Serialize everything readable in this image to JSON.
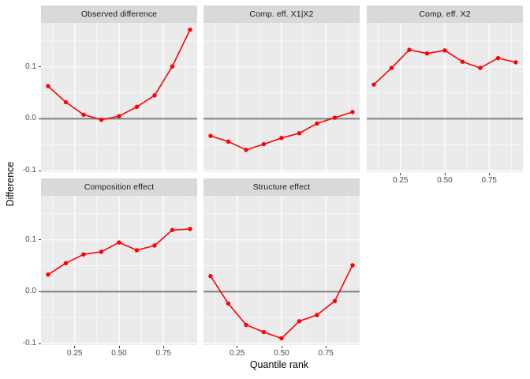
{
  "figure": {
    "xlabel": "Quantile rank",
    "ylabel": "Difference"
  },
  "style": {
    "figure_bg": "#FFFFFF",
    "panel_bg": "#EBEBEB",
    "strip_bg": "#D9D9D9",
    "strip_text_color": "#1A1A1A",
    "grid_major_color": "#FFFFFF",
    "grid_minor_color": "#FFFFFF",
    "line_color": "#FF0000",
    "point_color": "#FF0000",
    "zero_line_color": "#808080",
    "axis_text_color": "#4D4D4D"
  },
  "chart_data": {
    "type": "line",
    "facets": true,
    "grid": true,
    "xlabel": "Quantile rank",
    "ylabel": "Difference",
    "x": [
      0.1,
      0.2,
      0.3,
      0.4,
      0.5,
      0.6,
      0.7,
      0.8,
      0.9
    ],
    "series": [
      {
        "name": "Observed difference",
        "values": [
          0.063,
          0.032,
          0.008,
          -0.002,
          0.005,
          0.023,
          0.045,
          0.101,
          0.172
        ]
      },
      {
        "name": "Comp. eff. X1|X2",
        "values": [
          -0.033,
          -0.044,
          -0.06,
          -0.049,
          -0.037,
          -0.028,
          -0.009,
          0.002,
          0.013
        ]
      },
      {
        "name": "Comp. eff. X2",
        "values": [
          0.066,
          0.098,
          0.133,
          0.126,
          0.132,
          0.11,
          0.098,
          0.117,
          0.109
        ]
      },
      {
        "name": "Composition effect",
        "values": [
          0.033,
          0.055,
          0.072,
          0.077,
          0.095,
          0.08,
          0.089,
          0.119,
          0.121
        ]
      },
      {
        "name": "Structure effect",
        "values": [
          0.03,
          -0.023,
          -0.064,
          -0.078,
          -0.09,
          -0.057,
          -0.045,
          -0.018,
          0.051
        ]
      }
    ],
    "xlim": [
      0.06,
      0.94
    ],
    "ylim": [
      -0.103,
      0.185
    ],
    "x_ticks": [
      0.25,
      0.5,
      0.75
    ],
    "x_tick_labels": [
      "0.25",
      "0.50",
      "0.75"
    ],
    "y_ticks": [
      0.1,
      0.0,
      -0.1
    ],
    "y_tick_labels": [
      "0.1",
      "0.0",
      "-0.1"
    ],
    "x_minor_ticks": [
      0.125,
      0.375,
      0.625,
      0.875
    ],
    "y_minor_ticks": [
      0.15,
      0.05,
      -0.05
    ],
    "reference_line_y": 0,
    "legend_position": "none"
  }
}
